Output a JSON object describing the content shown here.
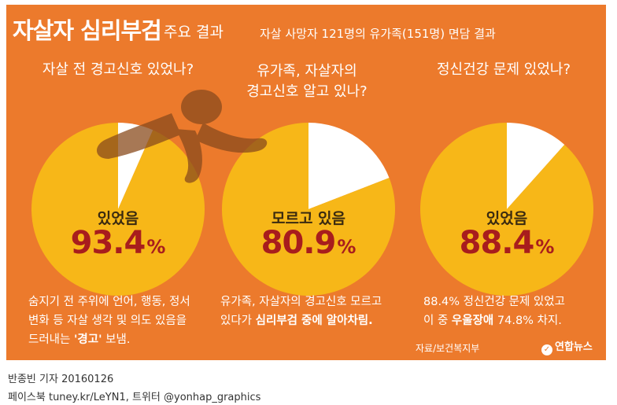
{
  "header": {
    "title_main": "자살자 심리부검",
    "title_sub": "주요 결과",
    "subtitle": "자살 사망자 121명의 유가족(151명) 면담 결과"
  },
  "colors": {
    "background": "#ec7a2c",
    "pie_main": "#f7b718",
    "pie_rest": "#ffffff",
    "value_text": "#a81d1d"
  },
  "chart_data": [
    {
      "type": "pie",
      "title": "자살 전 경고신호 있었나?",
      "slices": [
        {
          "label": "있었음",
          "value": 93.4,
          "color": "#f7b718"
        },
        {
          "label": "",
          "value": 6.6,
          "color": "#ffffff"
        }
      ],
      "value_text": "93.4",
      "unit": "%",
      "desc_lines": [
        {
          "parts": [
            {
              "text": "숨지기 전 주위에 언어, 행동, 정서",
              "bold": false
            }
          ]
        },
        {
          "parts": [
            {
              "text": "변화 등 자살 생각 및 의도 있음을",
              "bold": false
            }
          ]
        },
        {
          "parts": [
            {
              "text": "드러내는 ",
              "bold": false
            },
            {
              "text": "'경고'",
              "bold": true
            },
            {
              "text": " 보냄.",
              "bold": false
            }
          ]
        }
      ]
    },
    {
      "type": "pie",
      "title": "유가족, 자살자의\n경고신호 알고 있나?",
      "title_lines": [
        "유가족, 자살자의",
        "경고신호 알고 있나?"
      ],
      "slices": [
        {
          "label": "모르고 있음",
          "value": 80.9,
          "color": "#f7b718"
        },
        {
          "label": "",
          "value": 19.1,
          "color": "#ffffff"
        }
      ],
      "value_text": "80.9",
      "unit": "%",
      "desc_lines": [
        {
          "parts": [
            {
              "text": "유가족, 자살자의 경고신호 모르고",
              "bold": false
            }
          ]
        },
        {
          "parts": [
            {
              "text": "있다가 ",
              "bold": false
            },
            {
              "text": "심리부검 중에 알아차림.",
              "bold": true
            }
          ]
        }
      ]
    },
    {
      "type": "pie",
      "title": "정신건강 문제 있었나?",
      "slices": [
        {
          "label": "있었음",
          "value": 88.4,
          "color": "#f7b718"
        },
        {
          "label": "",
          "value": 11.6,
          "color": "#ffffff"
        }
      ],
      "value_text": "88.4",
      "unit": "%",
      "desc_lines": [
        {
          "parts": [
            {
              "text": "88.4% 정신건강 문제 있었고",
              "bold": false
            }
          ]
        },
        {
          "parts": [
            {
              "text": "이 중 ",
              "bold": false
            },
            {
              "text": "우울장애",
              "bold": true
            },
            {
              "text": " 74.8% 차지.",
              "bold": false
            }
          ]
        }
      ]
    }
  ],
  "source": "자료/보건복지부",
  "logo": "연합뉴스",
  "footer": {
    "line1": "반종빈 기자 20160126",
    "line2": "페이스북 tuney.kr/LeYN1, 트위터 @yonhap_graphics"
  }
}
